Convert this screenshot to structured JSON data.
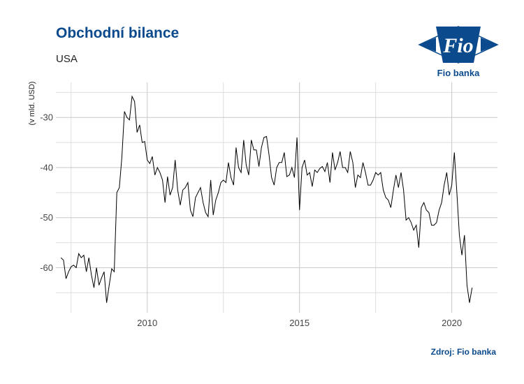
{
  "title": "Obchodní bilance",
  "subtitle": "USA",
  "source": "Zdroj: Fio banka",
  "logo": {
    "mark_text": "Fio",
    "text": "Fio banka",
    "color": "#0b4a8c"
  },
  "chart_data": {
    "type": "line",
    "ylabel": "(v mld. USD)",
    "xlim": [
      2007.0,
      2021.5
    ],
    "ylim": [
      -69,
      -23
    ],
    "x_ticks": [
      2010,
      2015,
      2020
    ],
    "x_tick_labels": [
      "2010",
      "2015",
      "2020"
    ],
    "y_ticks": [
      -60,
      -50,
      -40,
      -30
    ],
    "y_tick_labels": [
      "-60",
      "-50",
      "-40",
      "-30"
    ],
    "grid": true,
    "line_color": "#000000",
    "series": [
      {
        "start_year": 2007,
        "start_month": 3,
        "values": [
          -58.0,
          -58.5,
          -62.2,
          -60.8,
          -59.8,
          -59.5,
          -60.0,
          -57.2,
          -58.0,
          -57.5,
          -60.8,
          -58.0,
          -61.5,
          -64.0,
          -60.0,
          -63.5,
          -62.0,
          -60.8,
          -67.0,
          -63.5,
          -60.2,
          -60.8,
          -45.0,
          -44.0,
          -38.0,
          -28.8,
          -30.0,
          -30.5,
          -25.8,
          -26.8,
          -33.0,
          -31.5,
          -35.0,
          -34.8,
          -38.5,
          -39.2,
          -37.8,
          -41.5,
          -40.0,
          -41.0,
          -42.5,
          -47.0,
          -41.8,
          -45.5,
          -44.0,
          -38.5,
          -44.5,
          -47.5,
          -44.5,
          -44.0,
          -43.0,
          -48.5,
          -49.8,
          -46.0,
          -45.0,
          -44.0,
          -47.0,
          -49.0,
          -49.8,
          -42.5,
          -49.5,
          -46.5,
          -45.0,
          -43.0,
          -42.5,
          -43.0,
          -39.0,
          -42.0,
          -43.5,
          -36.0,
          -40.0,
          -41.0,
          -34.5,
          -39.5,
          -41.5,
          -34.5,
          -36.5,
          -36.5,
          -39.8,
          -36.0,
          -34.0,
          -33.8,
          -37.5,
          -42.0,
          -43.5,
          -40.0,
          -39.0,
          -39.0,
          -37.0,
          -41.8,
          -41.5,
          -40.0,
          -42.0,
          -34.0,
          -48.5,
          -40.0,
          -38.5,
          -41.5,
          -41.0,
          -43.8,
          -40.5,
          -41.0,
          -40.2,
          -39.8,
          -40.8,
          -39.0,
          -43.0,
          -37.0,
          -40.5,
          -39.0,
          -36.8,
          -40.0,
          -40.0,
          -41.0,
          -36.8,
          -39.0,
          -44.0,
          -41.5,
          -42.0,
          -39.0,
          -41.0,
          -43.5,
          -43.5,
          -42.5,
          -41.0,
          -41.5,
          -41.0,
          -44.5,
          -46.0,
          -46.5,
          -48.0,
          -44.5,
          -41.5,
          -44.0,
          -41.0,
          -44.5,
          -50.5,
          -50.0,
          -51.0,
          -52.5,
          -51.5,
          -56.0,
          -48.0,
          -47.0,
          -48.5,
          -49.0,
          -51.5,
          -51.5,
          -51.0,
          -48.5,
          -47.0,
          -43.5,
          -41.0,
          -45.5,
          -43.5,
          -37.0,
          -45.0,
          -53.5,
          -57.5,
          -53.5,
          -63.5,
          -67.0,
          -64.0
        ]
      }
    ]
  }
}
